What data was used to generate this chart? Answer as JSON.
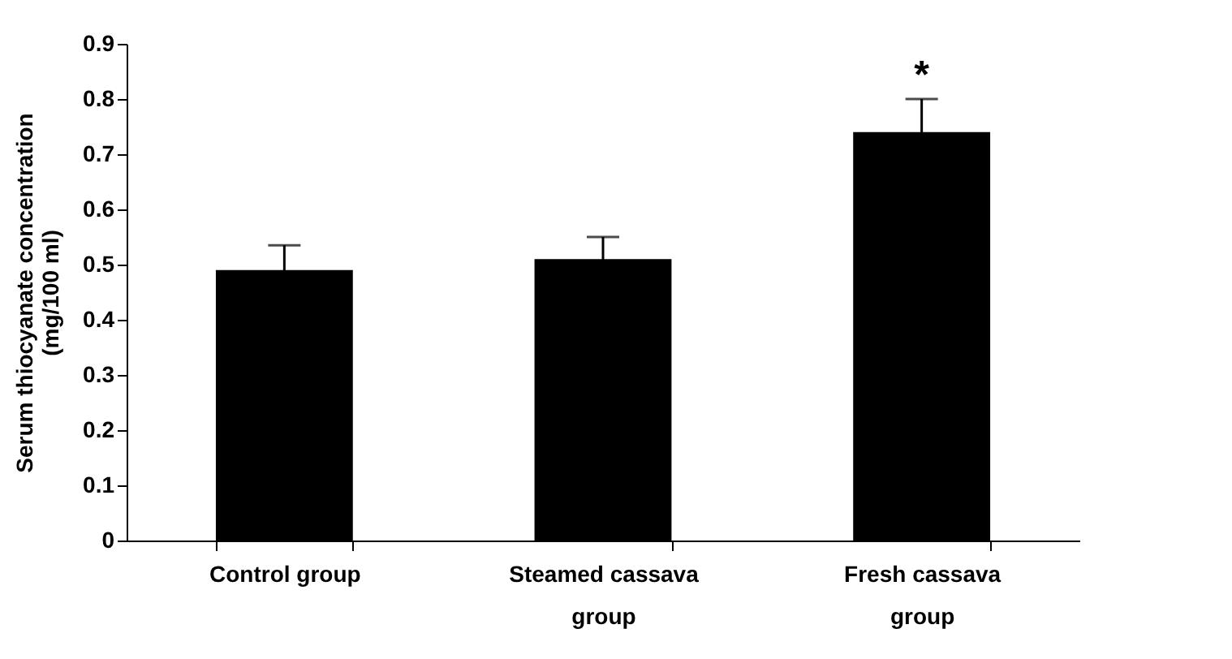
{
  "chart_data": {
    "type": "bar",
    "ylabel": "Serum thiocyanate concentration (mg/100 ml)",
    "categories": [
      "Control group",
      "Steamed cassava group",
      "Fresh cassava group"
    ],
    "values": [
      0.49,
      0.51,
      0.74
    ],
    "errors": [
      0.045,
      0.04,
      0.06
    ],
    "color": "#000000",
    "ylim": [
      0,
      0.9
    ],
    "yticks": [
      0,
      0.1,
      0.2,
      0.3,
      0.4,
      0.5,
      0.6,
      0.7,
      0.8,
      0.9
    ],
    "annotations": [
      "*"
    ]
  }
}
